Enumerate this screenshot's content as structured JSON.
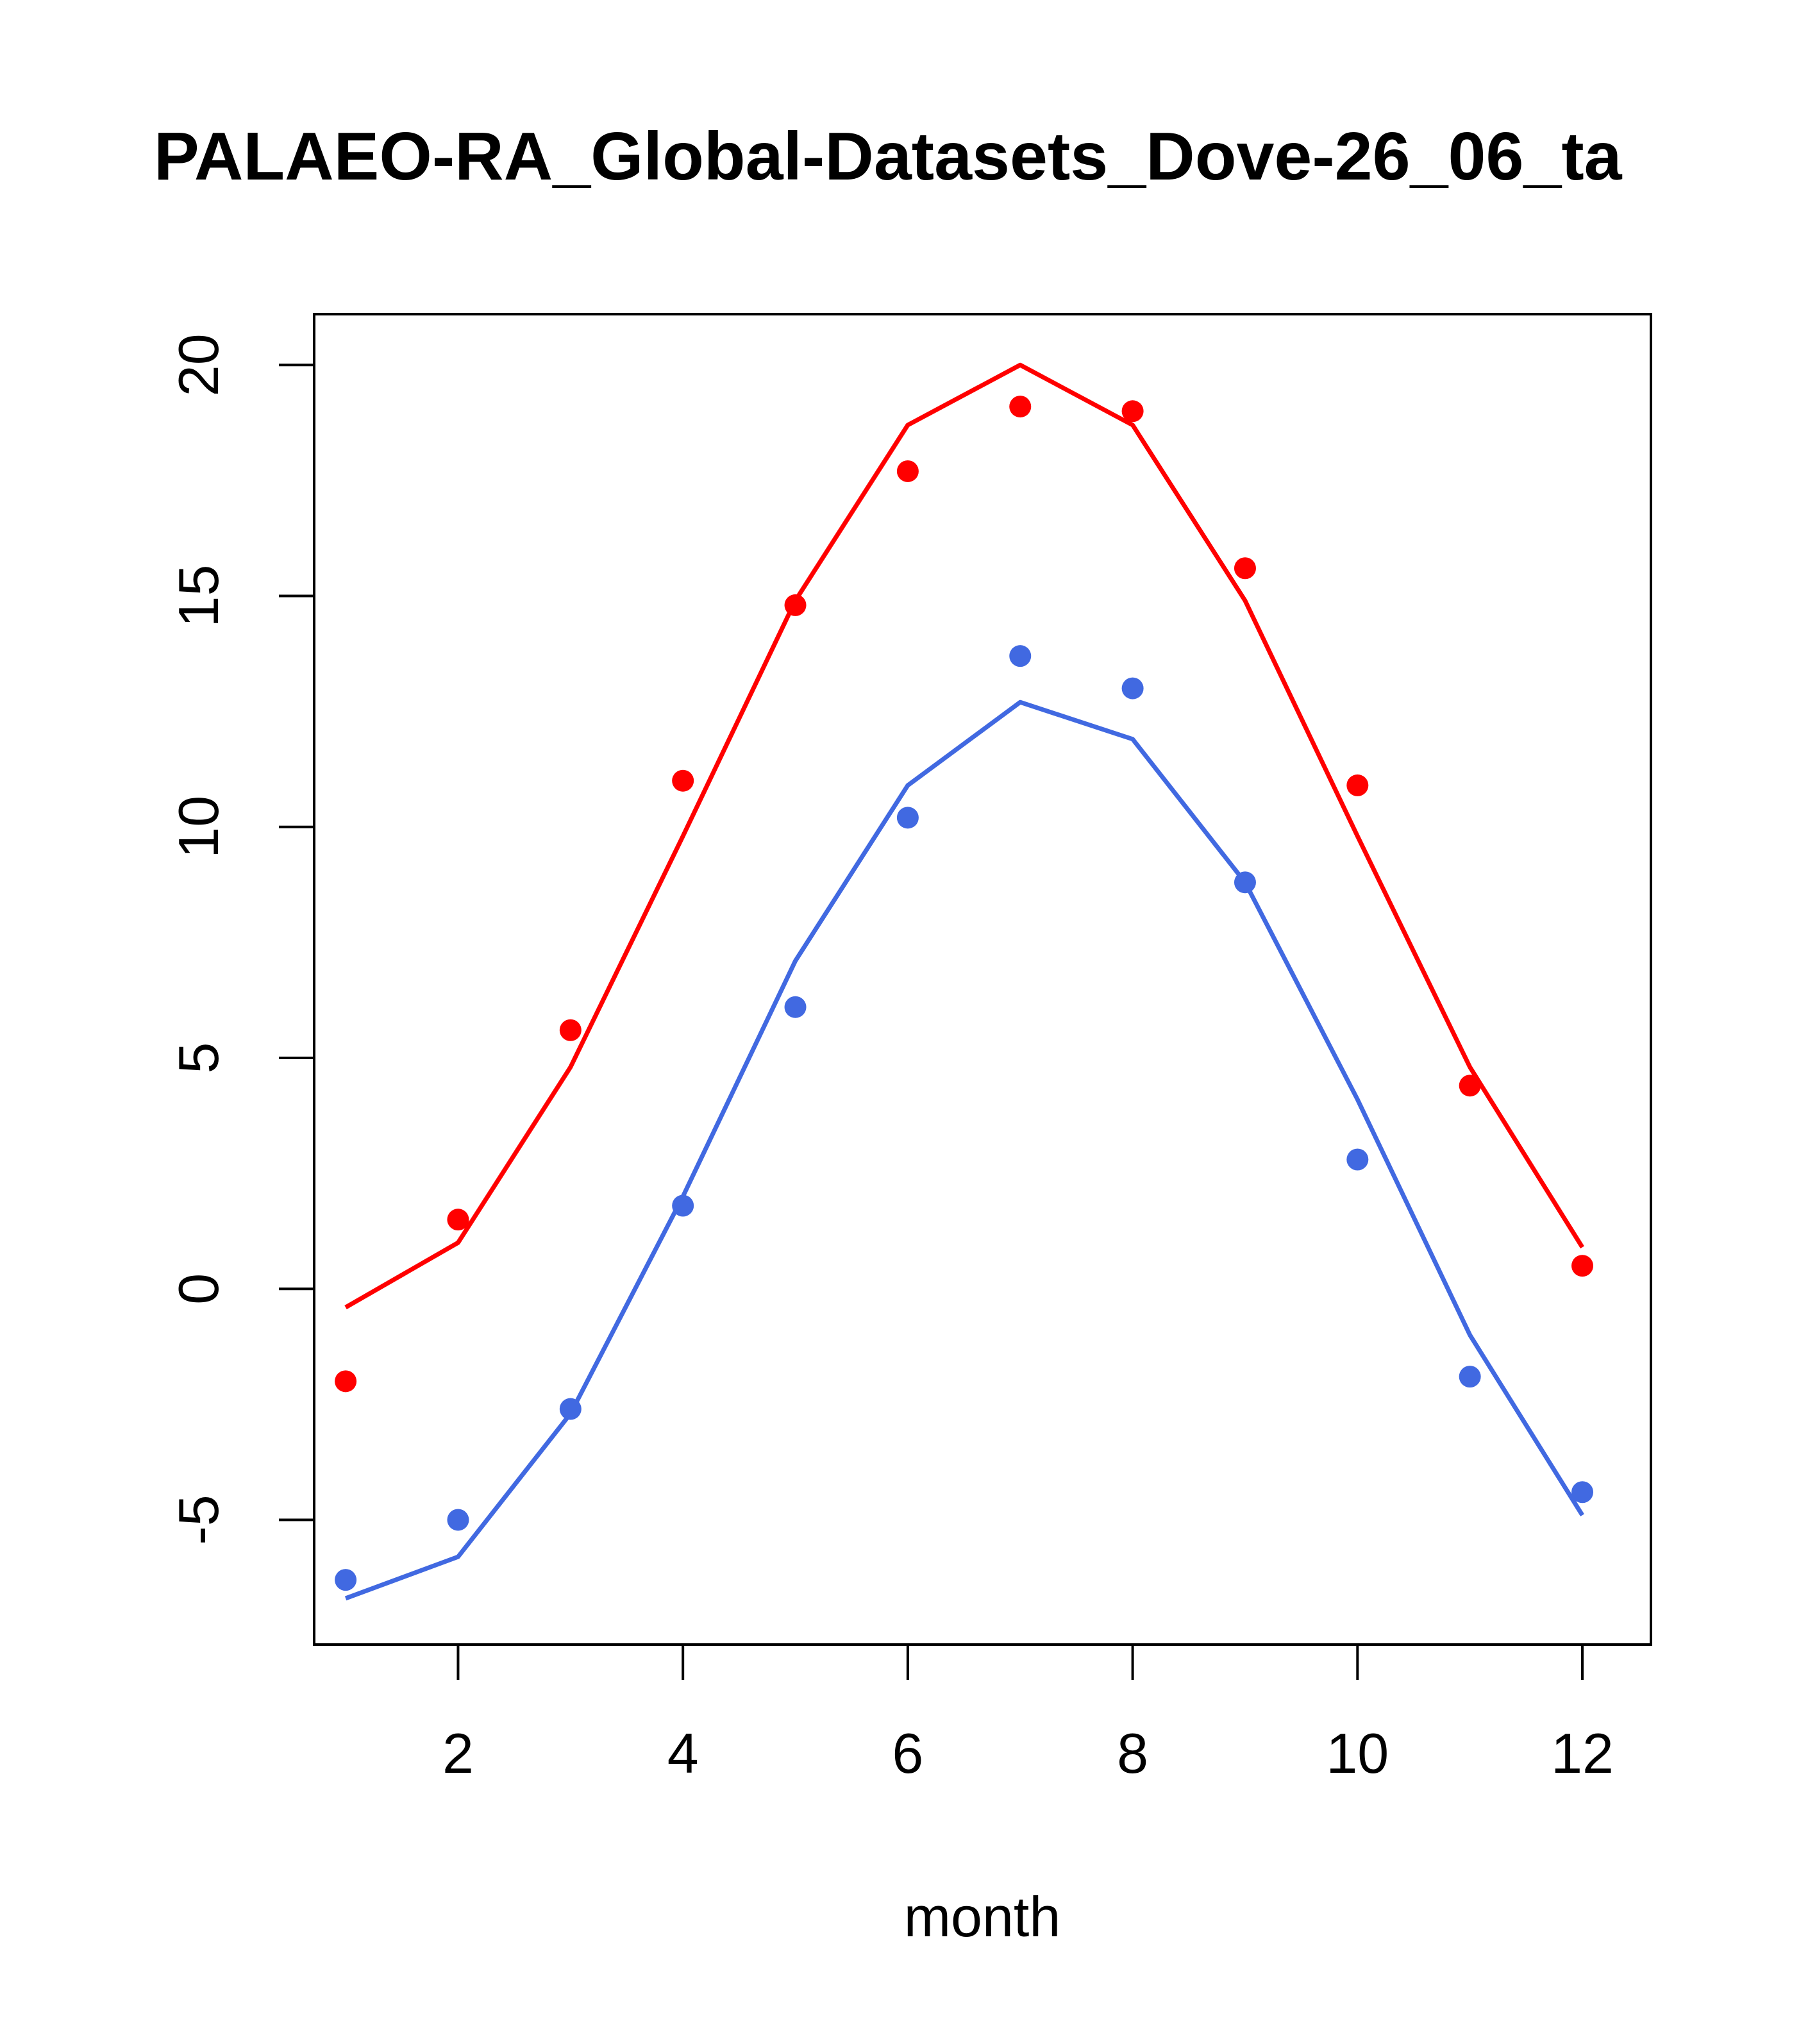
{
  "chart_data": {
    "type": "line",
    "title": "PALAEO-RA_Global-Datasets_Dove-26_06_ta",
    "xlabel": "month",
    "ylabel": "",
    "xlim": [
      0.72,
      12.61
    ],
    "ylim": [
      -7.7,
      21.1
    ],
    "xticks": [
      2,
      4,
      6,
      8,
      10,
      12
    ],
    "xtick_labels": [
      "2",
      "4",
      "6",
      "8",
      "10",
      "12"
    ],
    "yticks": [
      -5,
      0,
      5,
      10,
      15,
      20
    ],
    "ytick_labels": [
      "-5",
      "0",
      "5",
      "10",
      "15",
      "20"
    ],
    "grid": false,
    "x": [
      1,
      2,
      3,
      4,
      5,
      6,
      7,
      8,
      9,
      10,
      11,
      12
    ],
    "series": [
      {
        "name": "upper-line",
        "kind": "line",
        "color": "#ff0000",
        "values": [
          -0.4,
          1.0,
          4.8,
          9.8,
          14.9,
          18.7,
          20.0,
          18.7,
          14.9,
          9.8,
          4.8,
          0.9
        ]
      },
      {
        "name": "upper-points",
        "kind": "points",
        "color": "#ff0000",
        "values": [
          -2.0,
          1.5,
          5.6,
          11.0,
          14.8,
          17.7,
          19.1,
          19.0,
          15.6,
          10.9,
          4.4,
          0.5
        ]
      },
      {
        "name": "lower-line",
        "kind": "line",
        "color": "#4169e1",
        "values": [
          -6.7,
          -5.8,
          -2.7,
          2.0,
          7.1,
          10.9,
          12.7,
          11.9,
          8.8,
          4.1,
          -1.0,
          -4.9
        ]
      },
      {
        "name": "lower-points",
        "kind": "points",
        "color": "#4169e1",
        "values": [
          -6.3,
          -5.0,
          -2.6,
          1.8,
          6.1,
          10.2,
          13.7,
          13.0,
          8.8,
          2.8,
          -1.9,
          -4.4
        ]
      }
    ]
  }
}
